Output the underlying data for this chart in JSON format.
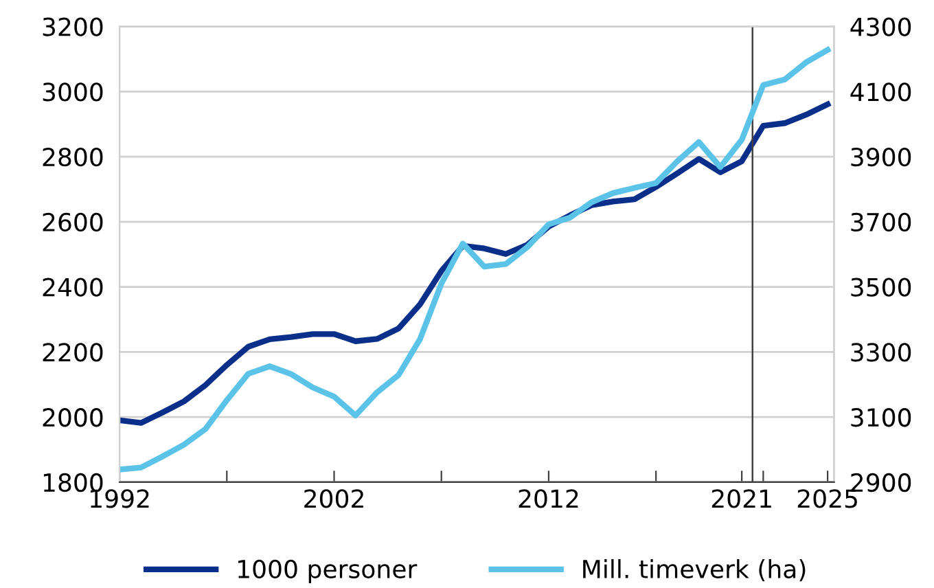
{
  "chart_data": {
    "type": "line",
    "x": [
      1992,
      1993,
      1994,
      1995,
      1996,
      1997,
      1998,
      1999,
      2000,
      2001,
      2002,
      2003,
      2004,
      2005,
      2006,
      2007,
      2008,
      2009,
      2010,
      2011,
      2012,
      2013,
      2014,
      2015,
      2016,
      2017,
      2018,
      2019,
      2020,
      2021,
      2022,
      2023,
      2024,
      2025
    ],
    "series": [
      {
        "name": "1000 personer",
        "color": "#0a2f8a",
        "values": [
          1990,
          1982,
          2014,
          2048,
          2098,
          2160,
          2216,
          2239,
          2246,
          2255,
          2255,
          2233,
          2240,
          2272,
          2346,
          2449,
          2526,
          2518,
          2501,
          2529,
          2585,
          2620,
          2651,
          2662,
          2669,
          2707,
          2749,
          2793,
          2752,
          2786,
          2895,
          2903,
          2929,
          2961
        ]
      },
      {
        "name": "Mill. timeverk (ha)",
        "color": "#5bc3e8",
        "axis": "y2",
        "values": [
          2939,
          2945,
          2979,
          3015,
          3063,
          3152,
          3233,
          3256,
          3232,
          3191,
          3163,
          3105,
          3176,
          3229,
          3339,
          3510,
          3633,
          3562,
          3570,
          3622,
          3692,
          3713,
          3760,
          3788,
          3804,
          3819,
          3886,
          3945,
          3868,
          3952,
          4120,
          4137,
          4190,
          4228
        ]
      }
    ],
    "xlim": [
      1992,
      2025.3
    ],
    "xticks": [
      1992,
      {
        "value": 1997,
        "label": null
      },
      2002,
      {
        "value": 2007,
        "label": null
      },
      2012,
      {
        "value": 2017,
        "label": null
      },
      2021,
      {
        "value": 2022,
        "label": null
      },
      2025
    ],
    "ylim": [
      1800,
      3200
    ],
    "yticks": [
      1800,
      2000,
      2200,
      2400,
      2600,
      2800,
      3000,
      3200
    ],
    "y2lim": [
      2900,
      4300
    ],
    "y2ticks": [
      2900,
      3100,
      3300,
      3500,
      3700,
      3900,
      4100,
      4300
    ],
    "ref_lines": [
      {
        "axis": "x",
        "value": 2021.5,
        "color": "#404040"
      }
    ],
    "grid": "y",
    "legend": "bottom",
    "marker": "none",
    "line_style": "solid"
  }
}
